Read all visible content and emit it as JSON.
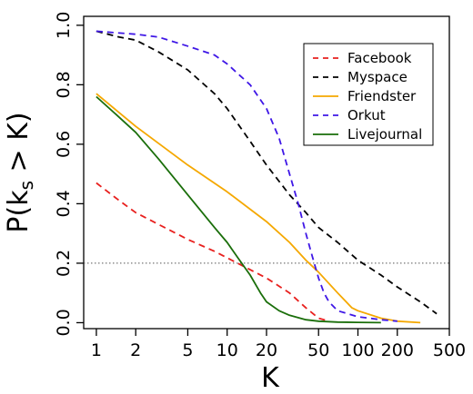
{
  "chart_data": {
    "type": "line",
    "xlabel": "K",
    "ylabel_main": "P(k",
    "ylabel_sub": "s",
    "ylabel_rest": " > K)",
    "xscale": "log",
    "xlim": [
      0.8,
      500
    ],
    "ylim": [
      -0.02,
      1.03
    ],
    "xticks": [
      1,
      2,
      5,
      10,
      20,
      50,
      100,
      200,
      500
    ],
    "xtick_labels": [
      "1",
      "2",
      "5",
      "10",
      "20",
      "50",
      "100",
      "200",
      "500"
    ],
    "yticks": [
      0.0,
      0.2,
      0.4,
      0.6,
      0.8,
      1.0
    ],
    "ytick_labels": [
      "0.0",
      "0.2",
      "0.4",
      "0.6",
      "0.8",
      "1.0"
    ],
    "reference_line": {
      "y": 0.2,
      "style": "dotted",
      "color": "#555555"
    },
    "legend_position": "top-right",
    "series": [
      {
        "name": "Facebook",
        "color": "#e8201e",
        "dash": "dashed",
        "x": [
          1,
          1.5,
          2,
          3,
          5,
          8,
          12,
          20,
          30,
          40,
          50,
          60
        ],
        "y": [
          0.47,
          0.41,
          0.37,
          0.33,
          0.28,
          0.24,
          0.2,
          0.15,
          0.1,
          0.05,
          0.015,
          0.005
        ]
      },
      {
        "name": "Myspace",
        "color": "#000000",
        "dash": "dashed",
        "x": [
          1,
          1.5,
          2,
          3,
          5,
          8,
          10,
          15,
          20,
          30,
          40,
          50,
          70,
          100,
          150,
          200,
          300,
          400
        ],
        "y": [
          0.98,
          0.96,
          0.95,
          0.91,
          0.85,
          0.77,
          0.72,
          0.61,
          0.53,
          0.43,
          0.37,
          0.32,
          0.27,
          0.21,
          0.16,
          0.12,
          0.07,
          0.03
        ]
      },
      {
        "name": "Friendster",
        "color": "#f5a800",
        "dash": "solid",
        "x": [
          1,
          2,
          5,
          10,
          20,
          30,
          40,
          50,
          70,
          90,
          100,
          150,
          200,
          300
        ],
        "y": [
          0.77,
          0.66,
          0.53,
          0.44,
          0.34,
          0.27,
          0.21,
          0.17,
          0.1,
          0.05,
          0.04,
          0.015,
          0.005,
          0
        ]
      },
      {
        "name": "Orkut",
        "color": "#3f17e6",
        "dash": "dashed",
        "x": [
          1,
          2,
          3,
          5,
          8,
          10,
          15,
          20,
          25,
          30,
          35,
          40,
          45,
          50,
          55,
          60,
          70,
          100,
          150,
          200
        ],
        "y": [
          0.98,
          0.97,
          0.96,
          0.93,
          0.9,
          0.87,
          0.8,
          0.72,
          0.62,
          0.5,
          0.4,
          0.3,
          0.22,
          0.15,
          0.1,
          0.07,
          0.04,
          0.02,
          0.01,
          0.005
        ]
      },
      {
        "name": "Livejournal",
        "color": "#1a6e0a",
        "dash": "solid",
        "x": [
          1,
          1.5,
          2,
          3,
          5,
          8,
          10,
          12,
          15,
          18,
          20,
          25,
          30,
          40,
          50,
          70,
          100,
          150
        ],
        "y": [
          0.76,
          0.69,
          0.64,
          0.55,
          0.43,
          0.32,
          0.27,
          0.22,
          0.16,
          0.1,
          0.07,
          0.04,
          0.025,
          0.01,
          0.005,
          0.002,
          0.001,
          0
        ]
      }
    ]
  }
}
